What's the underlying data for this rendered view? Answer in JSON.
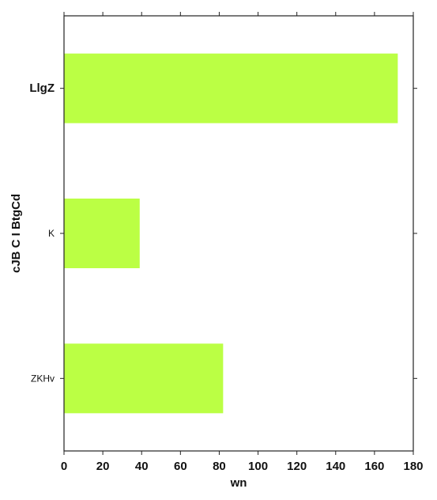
{
  "chart_data": {
    "type": "bar",
    "orientation": "horizontal",
    "categories": [
      "LlgZ",
      "K",
      "ZKHv"
    ],
    "values": [
      172,
      39,
      82
    ],
    "xlabel": "wn",
    "ylabel": "cJB C I BtgCd",
    "xlim": [
      0,
      180
    ],
    "x_ticks": [
      "0",
      "20",
      "40",
      "60",
      "80",
      "100",
      "120",
      "140",
      "160",
      "180"
    ],
    "grid": false,
    "legend": "none",
    "colors": {
      "bar": "#bbff44",
      "axis": "#222222",
      "text": "#111111"
    }
  }
}
